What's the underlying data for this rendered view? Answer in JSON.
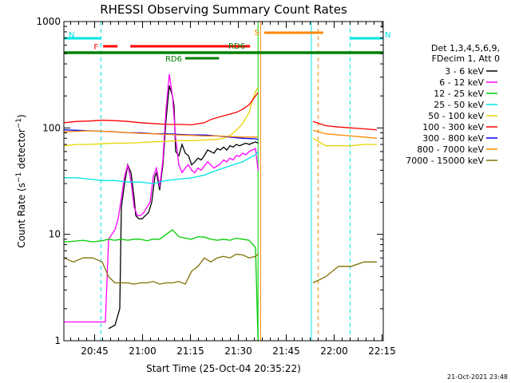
{
  "chart_data": {
    "type": "line",
    "title": "RHESSI Observing Summary Count Rates",
    "ylabel": "Count Rate (s⁻¹ detector⁻¹)",
    "ylabel_base": "Count Rate (s",
    "ylabel_sup1": "−1",
    "ylabel_mid": " detector",
    "ylabel_sup2": "−1",
    "ylabel_end": ")",
    "xlabel": "Start Time (25-Oct-04 20:35:22)",
    "y_scale": "log",
    "ylim": [
      1,
      1000
    ],
    "xlim_minutes": [
      0,
      100
    ],
    "y_tick_values": [
      1,
      10,
      100,
      1000
    ],
    "y_tick_labels": [
      "1",
      "10",
      "100",
      "1000"
    ],
    "x_ticks": [
      {
        "minute": 9.63,
        "label": "20:45"
      },
      {
        "minute": 24.63,
        "label": "21:00"
      },
      {
        "minute": 39.63,
        "label": "21:15"
      },
      {
        "minute": 54.63,
        "label": "21:30"
      },
      {
        "minute": 69.63,
        "label": "21:45"
      },
      {
        "minute": 84.63,
        "label": "22:00"
      },
      {
        "minute": 99.63,
        "label": "22:15"
      }
    ],
    "legend_header": [
      "Det 1,3,4,5,6,9,",
      "FDecim 1, Att 0"
    ],
    "series": [
      {
        "name": "3 - 6 keV",
        "color": "#000000",
        "points": [
          [
            14,
            1.3
          ],
          [
            16,
            1.4
          ],
          [
            17.5,
            2
          ],
          [
            18,
            18
          ],
          [
            19,
            30
          ],
          [
            20,
            45
          ],
          [
            21,
            38
          ],
          [
            22,
            22
          ],
          [
            22.5,
            15
          ],
          [
            23.5,
            14
          ],
          [
            24.5,
            14
          ],
          [
            25.5,
            15
          ],
          [
            26.5,
            16
          ],
          [
            27.5,
            20
          ],
          [
            28.5,
            35
          ],
          [
            29,
            38
          ],
          [
            30,
            26
          ],
          [
            31,
            45
          ],
          [
            32,
            120
          ],
          [
            33,
            250
          ],
          [
            34,
            200
          ],
          [
            34.5,
            160
          ],
          [
            35,
            60
          ],
          [
            36,
            55
          ],
          [
            37,
            70
          ],
          [
            38,
            58
          ],
          [
            39,
            55
          ],
          [
            40,
            45
          ],
          [
            41,
            48
          ],
          [
            42,
            52
          ],
          [
            43,
            50
          ],
          [
            44,
            55
          ],
          [
            45,
            62
          ],
          [
            46,
            60
          ],
          [
            47,
            58
          ],
          [
            48,
            64
          ],
          [
            49,
            62
          ],
          [
            50,
            66
          ],
          [
            51,
            62
          ],
          [
            52,
            68
          ],
          [
            53,
            66
          ],
          [
            54,
            70
          ],
          [
            55,
            68
          ],
          [
            56,
            70
          ],
          [
            57,
            72
          ],
          [
            58,
            70
          ],
          [
            59,
            72
          ],
          [
            60,
            74
          ],
          [
            60.8,
            72
          ]
        ]
      },
      {
        "name": "6 - 12 keV",
        "color": "#ff00ff",
        "points": [
          [
            0,
            1.5
          ],
          [
            4,
            1.5
          ],
          [
            8,
            1.5
          ],
          [
            11,
            1.5
          ],
          [
            13,
            1.5
          ],
          [
            14,
            9
          ],
          [
            15,
            10
          ],
          [
            16,
            11
          ],
          [
            17,
            14
          ],
          [
            18,
            22
          ],
          [
            19,
            35
          ],
          [
            20,
            45
          ],
          [
            21,
            32
          ],
          [
            22,
            18
          ],
          [
            23,
            15
          ],
          [
            24,
            15
          ],
          [
            25,
            16
          ],
          [
            26,
            18
          ],
          [
            27,
            20
          ],
          [
            28,
            35
          ],
          [
            29,
            42
          ],
          [
            30,
            28
          ],
          [
            31,
            50
          ],
          [
            32,
            150
          ],
          [
            33,
            320
          ],
          [
            34,
            200
          ],
          [
            35,
            80
          ],
          [
            36,
            45
          ],
          [
            37,
            38
          ],
          [
            38,
            42
          ],
          [
            39,
            45
          ],
          [
            40,
            40
          ],
          [
            41,
            38
          ],
          [
            42,
            42
          ],
          [
            43,
            40
          ],
          [
            44,
            44
          ],
          [
            45,
            48
          ],
          [
            46,
            45
          ],
          [
            47,
            42
          ],
          [
            48,
            44
          ],
          [
            49,
            46
          ],
          [
            50,
            50
          ],
          [
            51,
            48
          ],
          [
            52,
            52
          ],
          [
            53,
            50
          ],
          [
            54,
            55
          ],
          [
            55,
            54
          ],
          [
            56,
            58
          ],
          [
            57,
            56
          ],
          [
            58,
            60
          ],
          [
            59,
            62
          ],
          [
            60,
            64
          ],
          [
            60.8,
            40
          ]
        ]
      },
      {
        "name": "12 - 25 keV",
        "color": "#00cc00",
        "points": [
          [
            0,
            8.5
          ],
          [
            3,
            8.6
          ],
          [
            6,
            8.8
          ],
          [
            9,
            8.5
          ],
          [
            12,
            8.7
          ],
          [
            14,
            9
          ],
          [
            16,
            8.8
          ],
          [
            18,
            9
          ],
          [
            20,
            8.8
          ],
          [
            22,
            9
          ],
          [
            24,
            9
          ],
          [
            26,
            8.7
          ],
          [
            28,
            9
          ],
          [
            30,
            9
          ],
          [
            32,
            10
          ],
          [
            34,
            11
          ],
          [
            36,
            9.5
          ],
          [
            38,
            9.2
          ],
          [
            40,
            9
          ],
          [
            42,
            9.5
          ],
          [
            44,
            9.4
          ],
          [
            46,
            9
          ],
          [
            48,
            8.8
          ],
          [
            50,
            9
          ],
          [
            52,
            8.8
          ],
          [
            54,
            9.2
          ],
          [
            56,
            9
          ],
          [
            58,
            8.8
          ],
          [
            60,
            7.5
          ],
          [
            60.8,
            1
          ]
        ]
      },
      {
        "name": "25 - 50 keV",
        "color": "#00e5e5",
        "points": [
          [
            0,
            34
          ],
          [
            4,
            34
          ],
          [
            8,
            33
          ],
          [
            12,
            32
          ],
          [
            16,
            32
          ],
          [
            20,
            31
          ],
          [
            24,
            31
          ],
          [
            28,
            30
          ],
          [
            32,
            32
          ],
          [
            36,
            33
          ],
          [
            40,
            34
          ],
          [
            42,
            35
          ],
          [
            44,
            36
          ],
          [
            46,
            38
          ],
          [
            48,
            40
          ],
          [
            50,
            42
          ],
          [
            52,
            44
          ],
          [
            54,
            46
          ],
          [
            56,
            48
          ],
          [
            58,
            52
          ],
          [
            60,
            56
          ],
          [
            60.8,
            60
          ]
        ]
      },
      {
        "name": "50 - 100 keV",
        "color": "#e6d500",
        "points": [
          [
            0,
            68
          ],
          [
            4,
            70
          ],
          [
            8,
            70
          ],
          [
            12,
            71
          ],
          [
            16,
            72
          ],
          [
            20,
            72
          ],
          [
            24,
            73
          ],
          [
            28,
            74
          ],
          [
            32,
            75
          ],
          [
            36,
            76
          ],
          [
            40,
            76
          ],
          [
            44,
            77
          ],
          [
            48,
            78
          ],
          [
            50,
            80
          ],
          [
            52,
            85
          ],
          [
            54,
            95
          ],
          [
            56,
            110
          ],
          [
            58,
            140
          ],
          [
            59,
            180
          ],
          [
            60,
            220
          ],
          [
            60.8,
            240
          ],
          [
            78,
            80
          ],
          [
            82,
            68
          ],
          [
            86,
            68
          ],
          [
            90,
            68
          ],
          [
            94,
            70
          ],
          [
            98,
            70
          ]
        ]
      },
      {
        "name": "100 - 300 keV",
        "color": "#ff0000",
        "points": [
          [
            0,
            112
          ],
          [
            4,
            115
          ],
          [
            8,
            116
          ],
          [
            12,
            118
          ],
          [
            16,
            117
          ],
          [
            20,
            115
          ],
          [
            24,
            112
          ],
          [
            28,
            110
          ],
          [
            32,
            108
          ],
          [
            36,
            108
          ],
          [
            40,
            107
          ],
          [
            44,
            112
          ],
          [
            46,
            120
          ],
          [
            48,
            125
          ],
          [
            50,
            130
          ],
          [
            52,
            135
          ],
          [
            54,
            140
          ],
          [
            56,
            150
          ],
          [
            58,
            165
          ],
          [
            60,
            200
          ],
          [
            60.8,
            215
          ],
          [
            78,
            115
          ],
          [
            82,
            105
          ],
          [
            86,
            102
          ],
          [
            90,
            100
          ],
          [
            94,
            98
          ],
          [
            98,
            96
          ]
        ]
      },
      {
        "name": "300 - 800 keV",
        "color": "#0000ff",
        "points": [
          [
            0,
            96
          ],
          [
            4,
            95
          ],
          [
            8,
            94
          ],
          [
            12,
            93
          ],
          [
            16,
            92
          ],
          [
            20,
            90
          ],
          [
            24,
            90
          ],
          [
            28,
            88
          ],
          [
            32,
            88
          ],
          [
            36,
            87
          ],
          [
            40,
            86
          ],
          [
            44,
            86
          ],
          [
            48,
            84
          ],
          [
            52,
            82
          ],
          [
            56,
            80
          ],
          [
            60,
            79
          ],
          [
            60.8,
            78
          ]
        ]
      },
      {
        "name": "800 - 7000 keV",
        "color": "#ff8800",
        "points": [
          [
            0,
            92
          ],
          [
            4,
            93
          ],
          [
            8,
            94
          ],
          [
            12,
            93
          ],
          [
            16,
            92
          ],
          [
            20,
            90
          ],
          [
            24,
            89
          ],
          [
            28,
            88
          ],
          [
            32,
            87
          ],
          [
            36,
            86
          ],
          [
            40,
            85
          ],
          [
            44,
            84
          ],
          [
            48,
            84
          ],
          [
            52,
            83
          ],
          [
            56,
            82
          ],
          [
            60,
            82
          ],
          [
            60.8,
            82
          ],
          [
            78,
            95
          ],
          [
            82,
            88
          ],
          [
            86,
            86
          ],
          [
            90,
            84
          ],
          [
            94,
            82
          ],
          [
            98,
            80
          ]
        ]
      },
      {
        "name": "7000 - 15000 keV",
        "color": "#807000",
        "points": [
          [
            0,
            6
          ],
          [
            3,
            5.5
          ],
          [
            6,
            6
          ],
          [
            9,
            6
          ],
          [
            12,
            5.5
          ],
          [
            14,
            4
          ],
          [
            16,
            3.5
          ],
          [
            18,
            3.5
          ],
          [
            20,
            3.5
          ],
          [
            22,
            3.4
          ],
          [
            24,
            3.5
          ],
          [
            26,
            3.5
          ],
          [
            28,
            3.6
          ],
          [
            30,
            3.4
          ],
          [
            32,
            3.5
          ],
          [
            34,
            3.5
          ],
          [
            36,
            3.6
          ],
          [
            38,
            3.4
          ],
          [
            40,
            4.5
          ],
          [
            42,
            5
          ],
          [
            44,
            6
          ],
          [
            46,
            5.5
          ],
          [
            48,
            6
          ],
          [
            50,
            6.2
          ],
          [
            52,
            6
          ],
          [
            54,
            6.5
          ],
          [
            56,
            6.4
          ],
          [
            58,
            6
          ],
          [
            60,
            6.2
          ],
          [
            60.8,
            6.5
          ],
          [
            78,
            3.5
          ],
          [
            82,
            4
          ],
          [
            86,
            5
          ],
          [
            90,
            5
          ],
          [
            94,
            5.5
          ],
          [
            98,
            5.5
          ]
        ]
      }
    ],
    "annotations": [
      {
        "label": "N",
        "color": "#00e5e5",
        "start": 0,
        "end": 11.6
      },
      {
        "label": "N",
        "color": "#00e5e5",
        "start": 89.6,
        "end": 100
      },
      {
        "label": "F",
        "color": "#ff0000",
        "start": 12.3,
        "end": 16.8
      },
      {
        "label": "",
        "color": "#ff0000",
        "start": 20.8,
        "end": 58.3
      },
      {
        "label": "S",
        "color": "#ff8800",
        "start": 62.7,
        "end": 81.2
      },
      {
        "label": "RD6",
        "color": "#008000",
        "start": 38,
        "end": 48.6
      },
      {
        "label": "RD6",
        "color": "#008000",
        "start": 0,
        "end": 100
      }
    ],
    "vertical_lines": [
      {
        "minute": 11.6,
        "color": "#00e5e5",
        "style": "dash"
      },
      {
        "minute": 60.8,
        "color": "#00cc00",
        "style": "solid"
      },
      {
        "minute": 61.6,
        "color": "#ff8800",
        "style": "solid"
      },
      {
        "minute": 77.5,
        "color": "#00e5e5",
        "style": "solid"
      },
      {
        "minute": 79.6,
        "color": "#ff8800",
        "style": "dash"
      },
      {
        "minute": 89.6,
        "color": "#00e5e5",
        "style": "dash"
      }
    ],
    "grid": false,
    "legend_position": "right",
    "footer": "21-Oct-2021 23:48"
  }
}
